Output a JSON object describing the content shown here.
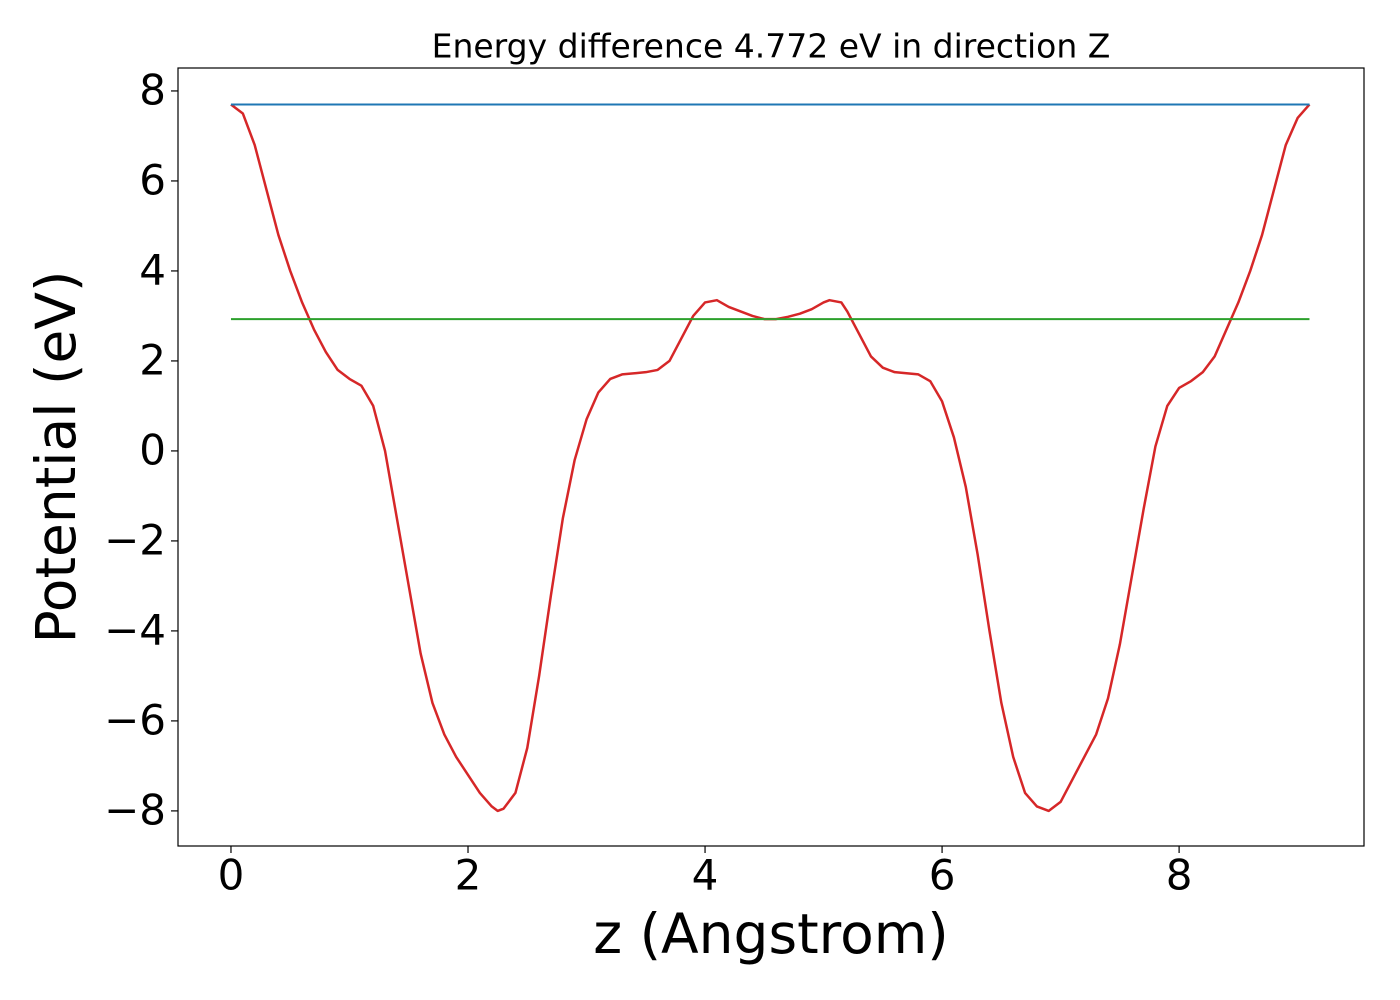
{
  "chart_data": {
    "type": "line",
    "title": "Energy difference 4.772 eV in direction Z",
    "xlabel": "z (Angstrom)",
    "ylabel": "Potential (eV)",
    "xlim": [
      -0.447,
      9.56
    ],
    "ylim": [
      -8.78,
      8.51
    ],
    "xticks": [
      0,
      2,
      4,
      6,
      8
    ],
    "yticks": [
      {
        "value": -8,
        "label": "−8"
      },
      {
        "value": -6,
        "label": "−6"
      },
      {
        "value": -4,
        "label": "−4"
      },
      {
        "value": -2,
        "label": "−2"
      },
      0,
      2,
      4,
      6,
      8
    ],
    "grid": false,
    "series": [
      {
        "color": "#d62728",
        "x": [
          0,
          0.1,
          0.2,
          0.3,
          0.4,
          0.5,
          0.6,
          0.7,
          0.8,
          0.9,
          1.0,
          1.1,
          1.2,
          1.3,
          1.4,
          1.5,
          1.6,
          1.7,
          1.8,
          1.9,
          2.0,
          2.1,
          2.2,
          2.25,
          2.3,
          2.4,
          2.5,
          2.6,
          2.7,
          2.8,
          2.9,
          3.0,
          3.1,
          3.2,
          3.3,
          3.5,
          3.6,
          3.7,
          3.8,
          3.9,
          4.0,
          4.1,
          4.2,
          4.3,
          4.4,
          4.5,
          4.6,
          4.7,
          4.8,
          4.9,
          5.0,
          5.05,
          5.15,
          5.2,
          5.3,
          5.4,
          5.5,
          5.6,
          5.8,
          5.9,
          6.0,
          6.1,
          6.2,
          6.3,
          6.4,
          6.5,
          6.6,
          6.7,
          6.8,
          6.9,
          7.0,
          7.1,
          7.2,
          7.3,
          7.4,
          7.5,
          7.6,
          7.7,
          7.8,
          7.9,
          8.0,
          8.1,
          8.2,
          8.3,
          8.4,
          8.5,
          8.6,
          8.7,
          8.8,
          8.9,
          9.0,
          9.1
        ],
        "values": [
          7.7,
          7.5,
          6.8,
          5.8,
          4.8,
          4.0,
          3.3,
          2.7,
          2.2,
          1.8,
          1.6,
          1.45,
          1.0,
          0.0,
          -1.5,
          -3.0,
          -4.5,
          -5.6,
          -6.3,
          -6.8,
          -7.2,
          -7.6,
          -7.9,
          -8.0,
          -7.95,
          -7.6,
          -6.6,
          -5.0,
          -3.2,
          -1.5,
          -0.2,
          0.7,
          1.3,
          1.6,
          1.7,
          1.75,
          1.8,
          2.0,
          2.5,
          3.0,
          3.3,
          3.35,
          3.2,
          3.1,
          3.0,
          2.93,
          2.93,
          2.98,
          3.05,
          3.15,
          3.3,
          3.35,
          3.3,
          3.1,
          2.6,
          2.1,
          1.85,
          1.75,
          1.7,
          1.55,
          1.1,
          0.3,
          -0.8,
          -2.3,
          -4.0,
          -5.6,
          -6.8,
          -7.6,
          -7.9,
          -8.0,
          -7.8,
          -7.3,
          -6.8,
          -6.3,
          -5.5,
          -4.3,
          -2.8,
          -1.3,
          0.1,
          1.0,
          1.4,
          1.55,
          1.75,
          2.1,
          2.7,
          3.3,
          4.0,
          4.8,
          5.8,
          6.8,
          7.4,
          7.7
        ]
      },
      {
        "color": "#1f77b4",
        "x": [
          0,
          9.1
        ],
        "values": [
          7.7,
          7.7
        ]
      },
      {
        "color": "#2ca02c",
        "x": [
          0,
          9.1
        ],
        "values": [
          2.93,
          2.93
        ]
      }
    ]
  }
}
